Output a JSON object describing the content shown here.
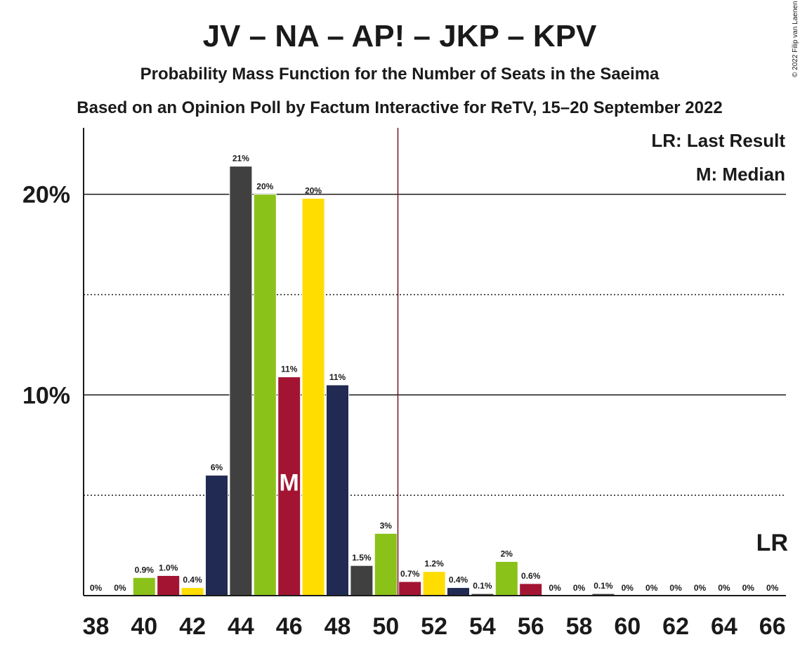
{
  "chart_data": {
    "type": "bar",
    "title": "JV – NA – AP! – JKP – KPV",
    "subtitle": "Probability Mass Function for the Number of Seats in the Saeima",
    "subtitle2": "Based on an Opinion Poll by Factum Interactive for ReTV, 15–20 September 2022",
    "copyright": "© 2022 Filip van Laenen",
    "legend": [
      "LR: Last Result",
      "M: Median"
    ],
    "legend_position": "top-right",
    "last_result_label": "LR",
    "median_label": "M",
    "median_seats": 46,
    "last_result_seats": 50.5,
    "x": [
      38,
      39,
      40,
      41,
      42,
      43,
      44,
      45,
      46,
      47,
      48,
      49,
      50,
      51,
      52,
      53,
      54,
      55,
      56,
      57,
      58,
      59,
      60,
      61,
      62,
      63,
      64,
      65,
      66
    ],
    "values": [
      0,
      0,
      0.9,
      1.0,
      0.4,
      6,
      21.4,
      20,
      10.9,
      19.8,
      10.5,
      1.5,
      3.1,
      0.7,
      1.2,
      0.4,
      0.1,
      1.7,
      0.6,
      0,
      0,
      0.1,
      0,
      0,
      0,
      0,
      0,
      0,
      0
    ],
    "labels": [
      "0%",
      "0%",
      "0.9%",
      "1.0%",
      "0.4%",
      "6%",
      "21%",
      "20%",
      "11%",
      "20%",
      "11%",
      "1.5%",
      "3%",
      "0.7%",
      "1.2%",
      "0.4%",
      "0.1%",
      "2%",
      "0.6%",
      "0%",
      "0%",
      "0.1%",
      "0%",
      "0%",
      "0%",
      "0%",
      "0%",
      "0%",
      "0%"
    ],
    "colors": [
      "#212A53",
      "#404040",
      "#8BC219",
      "#A31432",
      "#FFDD00",
      "#212A53",
      "#404040",
      "#8BC219",
      "#A31432",
      "#FFDD00",
      "#212A53",
      "#404040",
      "#8BC219",
      "#A31432",
      "#FFDD00",
      "#212A53",
      "#404040",
      "#8BC219",
      "#A31432",
      "#FFDD00",
      "#212A53",
      "#404040",
      "#8BC219",
      "#A31432",
      "#FFDD00",
      "#212A53",
      "#404040",
      "#8BC219",
      "#A31432"
    ],
    "x_tick_labels": [
      "38",
      "40",
      "42",
      "44",
      "46",
      "48",
      "50",
      "52",
      "54",
      "56",
      "58",
      "60",
      "62",
      "64",
      "66"
    ],
    "y_tick_labels": [
      "10%",
      "20%"
    ],
    "ylim": [
      0,
      23.3
    ],
    "grid": "dotted at 5% steps, solid at 10% steps",
    "lr_line_color": "#7A1020"
  }
}
